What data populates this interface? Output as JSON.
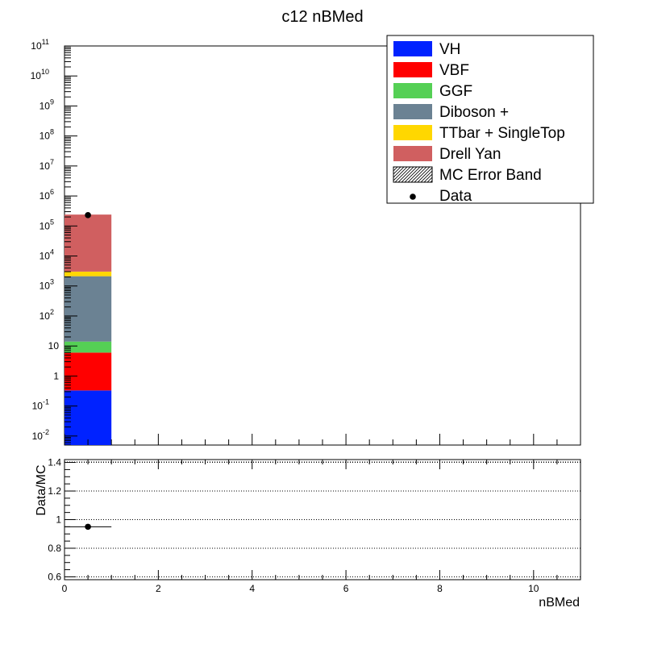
{
  "title": "c12 nBMed",
  "legend": {
    "placement": "top-right",
    "entries": [
      {
        "label": "VH",
        "color": "#0022ff",
        "kind": "fill"
      },
      {
        "label": "VBF",
        "color": "#ff0000",
        "kind": "fill"
      },
      {
        "label": "GGF",
        "color": "#55d055",
        "kind": "fill"
      },
      {
        "label": "Diboson +",
        "color": "#6b8293",
        "kind": "fill"
      },
      {
        "label": "TTbar + SingleTop",
        "color": "#ffd700",
        "kind": "fill"
      },
      {
        "label": "Drell Yan",
        "color": "#d05f60",
        "kind": "fill"
      },
      {
        "label": "MC Error Band",
        "color": "#888888",
        "kind": "hatch"
      },
      {
        "label": "Data",
        "color": "#000000",
        "kind": "marker"
      }
    ]
  },
  "chart_data": [
    {
      "type": "bar",
      "stacked": true,
      "log_y": true,
      "xlim": [
        0,
        11
      ],
      "ylim": [
        0.005,
        100000000000
      ],
      "xlabel": "",
      "ylabel": "",
      "bins": [
        [
          0,
          1
        ]
      ],
      "series": [
        {
          "name": "VH",
          "values": [
            0.33
          ]
        },
        {
          "name": "VBF",
          "values": [
            5.7
          ]
        },
        {
          "name": "GGF",
          "values": [
            8.0
          ]
        },
        {
          "name": "Diboson +",
          "values": [
            2100
          ]
        },
        {
          "name": "TTbar + SingleTop",
          "values": [
            900
          ]
        },
        {
          "name": "Drell Yan",
          "values": [
            237000
          ]
        }
      ],
      "data": {
        "name": "Data",
        "x": [
          0.5
        ],
        "y": [
          230000
        ]
      },
      "x_ticks": [
        "0",
        "2",
        "4",
        "6",
        "8",
        "10"
      ],
      "y_ticks": [
        {
          "value": 0.01,
          "mant": "10",
          "exp": "-2"
        },
        {
          "value": 0.1,
          "mant": "10",
          "exp": "-1"
        },
        {
          "value": 1,
          "mant": "1",
          "exp": ""
        },
        {
          "value": 10,
          "mant": "10",
          "exp": ""
        },
        {
          "value": 100,
          "mant": "10",
          "exp": "2"
        },
        {
          "value": 1000,
          "mant": "10",
          "exp": "3"
        },
        {
          "value": 10000,
          "mant": "10",
          "exp": "4"
        },
        {
          "value": 100000,
          "mant": "10",
          "exp": "5"
        },
        {
          "value": 1000000,
          "mant": "10",
          "exp": "6"
        },
        {
          "value": 10000000,
          "mant": "10",
          "exp": "7"
        },
        {
          "value": 100000000,
          "mant": "10",
          "exp": "8"
        },
        {
          "value": 1000000000,
          "mant": "10",
          "exp": "9"
        },
        {
          "value": 10000000000,
          "mant": "10",
          "exp": "10"
        },
        {
          "value": 100000000000,
          "mant": "10",
          "exp": "11"
        }
      ]
    },
    {
      "type": "scatter",
      "xlim": [
        0,
        11
      ],
      "ylim": [
        0.58,
        1.42
      ],
      "xlabel": "nBMed",
      "ylabel": "Data/MC",
      "grid": true,
      "points": [
        {
          "x": 0.5,
          "y": 0.95,
          "xerr": 0.5
        }
      ],
      "x_ticks": [
        "0",
        "2",
        "4",
        "6",
        "8",
        "10"
      ],
      "y_ticks": [
        "0.6",
        "0.8",
        "1",
        "1.2",
        "1.4"
      ]
    }
  ]
}
